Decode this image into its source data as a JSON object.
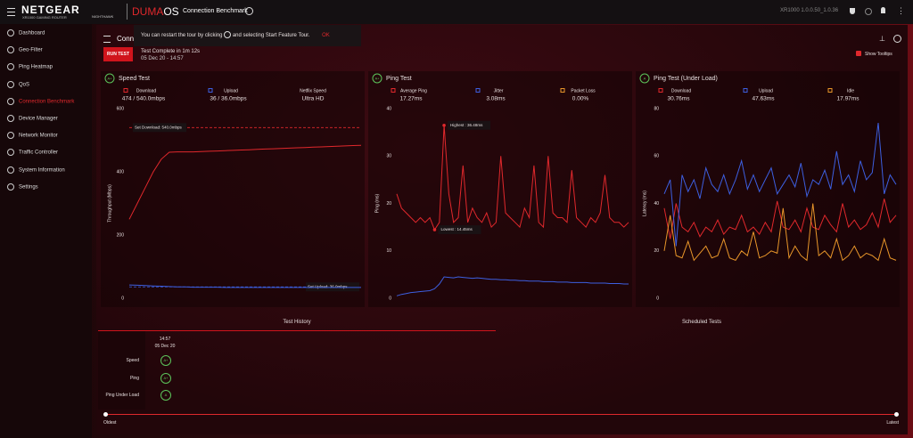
{
  "header": {
    "brand": "NETGEAR",
    "model": "XR1000 GAMING ROUTER",
    "sub_brand": "NIGHTHAWK",
    "os_a": "DUMA",
    "os_b": "OS",
    "page": "Connection Benchmark",
    "version": "XR1000 1.0.0.50_1.0.36"
  },
  "sidebar": {
    "items": [
      "Dashboard",
      "Geo-Filter",
      "Ping Heatmap",
      "QoS",
      "Connection Benchmark",
      "Device Manager",
      "Network Monitor",
      "Traffic Controller",
      "System Information",
      "Settings"
    ],
    "active": "Connection Benchmark"
  },
  "tour": {
    "text_a": "You can restart the tour by clicking",
    "text_b": "and selecting Start Feature Tour.",
    "ok": "OK"
  },
  "panel": {
    "title": "Connection Benchmark",
    "run": "RUN TEST",
    "status": "Test Complete in 1m 12s",
    "date": "05 Dec 20 - 14:57",
    "tooltips": "Show Tooltips"
  },
  "chart_data": [
    {
      "type": "line",
      "title": "Speed Test",
      "grade": "A+",
      "y_label": "Throughput (Mbps)",
      "ylim": [
        0,
        600
      ],
      "yticks": [
        0,
        200,
        400,
        600
      ],
      "grid": false,
      "stats": [
        {
          "name": "Download",
          "color": "#e0282c",
          "value": "474 / 540.0mbps"
        },
        {
          "name": "Upload",
          "color": "#3d5fe0",
          "value": "36 / 36.0mbps"
        },
        {
          "name": "Netflix Speed",
          "value": "Ultra HD"
        }
      ],
      "references": [
        {
          "label": "Set Download: 540.0mbps",
          "value": 540,
          "color": "#e0282c"
        },
        {
          "label": "Set Upload: 36.0mbps",
          "value": 36,
          "color": "#3d5fe0"
        }
      ],
      "series": [
        {
          "name": "Download",
          "color": "#e0282c",
          "values": [
            250,
            300,
            350,
            400,
            440,
            462,
            463,
            463,
            463,
            464,
            465,
            466,
            467,
            468,
            469,
            470,
            471,
            472,
            473,
            474,
            475,
            476,
            477,
            478,
            479,
            480,
            481,
            482,
            483,
            484
          ]
        },
        {
          "name": "Upload",
          "color": "#3d5fe0",
          "values": [
            42,
            41,
            40,
            39,
            38,
            37,
            36,
            36,
            35,
            35,
            35,
            35,
            34,
            34,
            34,
            34,
            34,
            34,
            34,
            34,
            34,
            34,
            34,
            34,
            34,
            34,
            34,
            34,
            34,
            34
          ]
        }
      ]
    },
    {
      "type": "line",
      "title": "Ping Test",
      "grade": "A+",
      "y_label": "Ping (ms)",
      "ylim": [
        0,
        40
      ],
      "yticks": [
        0,
        10,
        20,
        30,
        40
      ],
      "grid": false,
      "stats": [
        {
          "name": "Average Ping",
          "color": "#e0282c",
          "value": "17.27ms"
        },
        {
          "name": "Jitter",
          "color": "#3d5fe0",
          "value": "3.08ms"
        },
        {
          "name": "Packet Loss",
          "color": "#e8962a",
          "value": "0.00%"
        }
      ],
      "points": [
        {
          "label": "Highest : 36.48ms",
          "value": 36.48
        },
        {
          "label": "Lowest : 14.45ms",
          "value": 14.45
        }
      ],
      "series": [
        {
          "name": "Average Ping",
          "color": "#e0282c",
          "values": [
            22,
            19,
            18,
            17,
            16,
            17,
            16,
            17,
            14.45,
            16,
            36.48,
            22,
            16,
            17,
            28,
            16,
            19,
            17,
            16,
            18,
            15,
            16,
            30,
            18,
            17,
            16,
            15,
            19,
            17,
            28,
            16,
            15,
            30,
            18,
            17,
            17,
            16,
            27,
            17,
            16,
            15,
            17,
            16,
            18,
            26,
            17,
            16,
            16,
            15,
            16
          ]
        },
        {
          "name": "Jitter",
          "color": "#3d5fe0",
          "values": [
            0.5,
            0.8,
            1,
            1.2,
            1.3,
            1.4,
            1.5,
            1.6,
            2,
            3,
            4.5,
            4.4,
            4.3,
            4.5,
            4.4,
            4.3,
            4.2,
            4.3,
            4.2,
            4.1,
            4,
            4,
            3.9,
            3.9,
            3.8,
            3.8,
            3.7,
            3.7,
            3.6,
            3.6,
            3.6,
            3.5,
            3.5,
            3.5,
            3.4,
            3.4,
            3.4,
            3.3,
            3.3,
            3.3,
            3.3,
            3.2,
            3.2,
            3.2,
            3.2,
            3.1,
            3.1,
            3.1,
            3,
            3
          ]
        }
      ]
    },
    {
      "type": "line",
      "title": "Ping Test (Under Load)",
      "grade": "A",
      "y_label": "Latency (ms)",
      "ylim": [
        0,
        80
      ],
      "yticks": [
        0,
        20,
        40,
        60,
        80
      ],
      "grid": false,
      "stats": [
        {
          "name": "Download",
          "color": "#e0282c",
          "value": "30.76ms"
        },
        {
          "name": "Upload",
          "color": "#3d5fe0",
          "value": "47.63ms"
        },
        {
          "name": "Idle",
          "color": "#e8962a",
          "value": "17.97ms"
        }
      ],
      "series": [
        {
          "name": "Download",
          "color": "#e0282c",
          "values": [
            38,
            25,
            40,
            30,
            28,
            32,
            26,
            30,
            28,
            33,
            27,
            30,
            29,
            35,
            28,
            30,
            27,
            32,
            28,
            41,
            30,
            29,
            33,
            28,
            38,
            30,
            29,
            35,
            31,
            28,
            40,
            30,
            33,
            29,
            31,
            36,
            30,
            42,
            32,
            35
          ]
        },
        {
          "name": "Upload",
          "color": "#3d5fe0",
          "values": [
            44,
            50,
            22,
            52,
            45,
            50,
            42,
            55,
            48,
            45,
            52,
            44,
            50,
            58,
            46,
            52,
            45,
            50,
            55,
            44,
            48,
            52,
            47,
            57,
            43,
            50,
            48,
            54,
            46,
            62,
            48,
            52,
            45,
            58,
            50,
            53,
            74,
            44,
            52,
            48
          ]
        },
        {
          "name": "Idle",
          "color": "#e8962a",
          "values": [
            20,
            35,
            18,
            17,
            24,
            16,
            19,
            22,
            17,
            18,
            25,
            17,
            16,
            20,
            18,
            28,
            17,
            18,
            20,
            19,
            38,
            17,
            22,
            18,
            16,
            40,
            18,
            20,
            17,
            25,
            16,
            18,
            22,
            17,
            19,
            18,
            16,
            25,
            17,
            16
          ]
        }
      ]
    }
  ],
  "history": {
    "tab_history": "Test History",
    "tab_scheduled": "Scheduled Tests",
    "time": "14:57",
    "date": "05 Dec 20",
    "rows": [
      {
        "label": "Speed",
        "grade": "A+"
      },
      {
        "label": "Ping",
        "grade": "A+"
      },
      {
        "label": "Ping Under Load",
        "grade": "A"
      }
    ],
    "oldest": "Oldest",
    "latest": "Latest"
  }
}
